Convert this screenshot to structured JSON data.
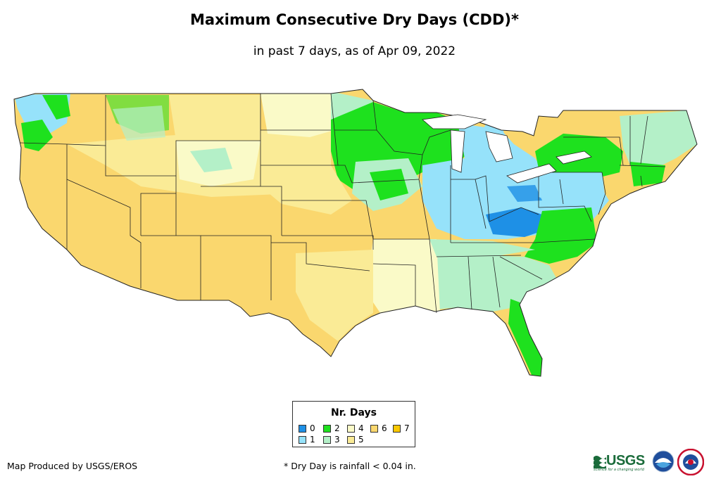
{
  "title": "Maximum Consecutive Dry Days (CDD)*",
  "subtitle": "in past 7 days, as of Apr 09, 2022",
  "legend": {
    "title": "Nr. Days",
    "items": [
      {
        "label": "0",
        "color": "#1e90e6"
      },
      {
        "label": "1",
        "color": "#96e2fa"
      },
      {
        "label": "2",
        "color": "#1ee11e"
      },
      {
        "label": "3",
        "color": "#b4f0c8"
      },
      {
        "label": "4",
        "color": "#fafac8"
      },
      {
        "label": "5",
        "color": "#faeb96"
      },
      {
        "label": "6",
        "color": "#fad76e"
      },
      {
        "label": "7",
        "color": "#fac800"
      }
    ]
  },
  "credit": "Map Produced by USGS/EROS",
  "footnote": "* Dry Day is rainfall < 0.04 in.",
  "logos": {
    "usgs": "USGS",
    "usgs_tagline": "science for a changing world"
  }
}
